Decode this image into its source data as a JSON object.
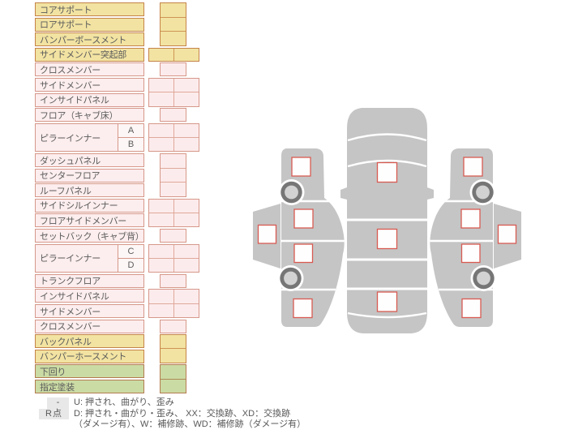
{
  "palette": {
    "row_yellow_fill": "#F2E3A2",
    "row_yellow_border": "#C58349",
    "row_pink_fill": "#FCEDEE",
    "row_pink_border": "#D6988A",
    "row_green_fill": "#CBDBA4",
    "row_green_border": "#B47B50",
    "sub_box_fill": "#FDF6F6",
    "text_color": "#5B5B5B",
    "legend_key_bg": "#E8E8E8",
    "car_body_gray": "#C5C5C5",
    "wheel_ring": "#767676",
    "wheel_hub": "#D2D2D2",
    "checkbox_border_red": "#D85A52"
  },
  "table": {
    "rows": [
      {
        "label": "コアサポート",
        "color": "yellow"
      },
      {
        "label": "ロアサポート",
        "color": "yellow"
      },
      {
        "label": "バンパーボースメント",
        "color": "yellow"
      },
      {
        "label": "サイドメンバー突起部",
        "color": "yellow"
      },
      {
        "label": "クロスメンバー",
        "color": "pink"
      },
      {
        "label": "サイドメンバー",
        "color": "pink"
      },
      {
        "label": "インサイドパネル",
        "color": "pink"
      },
      {
        "label": "フロア（キャブ床）",
        "color": "pink"
      },
      {
        "label": "ピラーインナー",
        "color": "pink",
        "sub": [
          "A",
          "B"
        ]
      },
      {
        "label": "ダッシュパネル",
        "color": "pink"
      },
      {
        "label": "センターフロア",
        "color": "pink"
      },
      {
        "label": "ルーフパネル",
        "color": "pink"
      },
      {
        "label": "サイドシルインナー",
        "color": "pink"
      },
      {
        "label": "フロアサイドメンバー",
        "color": "pink"
      },
      {
        "label": "セットバック（キャブ背）",
        "color": "pink"
      },
      {
        "label": "ピラーインナー",
        "color": "pink",
        "sub": [
          "C",
          "D"
        ]
      },
      {
        "label": "トランクフロア",
        "color": "pink"
      },
      {
        "label": "インサイドパネル",
        "color": "pink"
      },
      {
        "label": "サイドメンバー",
        "color": "pink"
      },
      {
        "label": "クロスメンバー",
        "color": "pink"
      },
      {
        "label": "バックパネル",
        "color": "yellow"
      },
      {
        "label": "バンパーホースメント",
        "color": "yellow"
      },
      {
        "label": "下回り",
        "color": "green"
      },
      {
        "label": "指定塗装",
        "color": "green"
      }
    ]
  },
  "grid": {
    "blocks": [
      {
        "unit": 0,
        "rows": 3,
        "cols": 1,
        "color": "yellow"
      },
      {
        "unit": 3,
        "rows": 1,
        "cols": 2,
        "color": "yellow"
      },
      {
        "unit": 4,
        "rows": 1,
        "cols": 1,
        "color": "pink"
      },
      {
        "unit": 5,
        "rows": 2,
        "cols": 2,
        "color": "pink"
      },
      {
        "unit": 7,
        "rows": 1,
        "cols": 1,
        "color": "pink"
      },
      {
        "unit": 8,
        "rows": 2,
        "cols": 2,
        "color": "pink"
      },
      {
        "unit": 10,
        "rows": 3,
        "cols": 1,
        "color": "pink"
      },
      {
        "unit": 13,
        "rows": 2,
        "cols": 2,
        "color": "pink"
      },
      {
        "unit": 15,
        "rows": 1,
        "cols": 1,
        "color": "pink"
      },
      {
        "unit": 16,
        "rows": 2,
        "cols": 2,
        "color": "pink"
      },
      {
        "unit": 18,
        "rows": 1,
        "cols": 1,
        "color": "pink"
      },
      {
        "unit": 19,
        "rows": 2,
        "cols": 2,
        "color": "pink"
      },
      {
        "unit": 21,
        "rows": 1,
        "cols": 1,
        "color": "pink"
      },
      {
        "unit": 22,
        "rows": 2,
        "cols": 1,
        "color": "yellow"
      },
      {
        "unit": 24,
        "rows": 2,
        "cols": 1,
        "color": "green"
      }
    ]
  },
  "legend": {
    "rows": [
      {
        "key": "-",
        "text": "U: 押され、曲がり、歪み"
      },
      {
        "key": "R点",
        "text": "D: 押され・曲がり・歪み、 XX：交換跡、XD：交換跡",
        "text2": "（ダメージ有）、W：補修跡、WD：補修跡（ダメージ有）"
      }
    ]
  }
}
